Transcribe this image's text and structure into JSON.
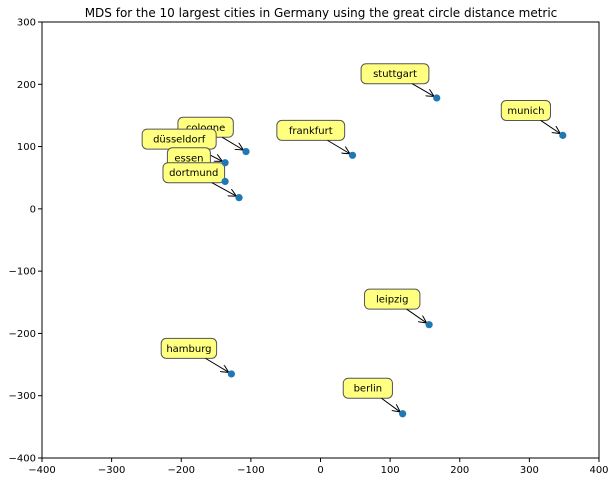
{
  "chart_data": {
    "type": "scatter",
    "title": "MDS for the 10 largest cities in Germany using the great circle distance metric",
    "xlim": [
      -400,
      400
    ],
    "ylim": [
      -400,
      300
    ],
    "xticks": [
      -400,
      -300,
      -200,
      -100,
      0,
      100,
      200,
      300,
      400
    ],
    "yticks": [
      -400,
      -300,
      -200,
      -100,
      0,
      100,
      200,
      300
    ],
    "xlabel": "",
    "ylabel": "",
    "grid": false,
    "colors": {
      "point": "#1f77b4",
      "annotation_fill": "#ffff80",
      "annotation_edge": "#555555"
    },
    "points": [
      {
        "label": "stuttgart",
        "x": 167,
        "y": 178,
        "text_x": 107,
        "text_y": 217
      },
      {
        "label": "munich",
        "x": 348,
        "y": 118,
        "text_x": 295,
        "text_y": 158
      },
      {
        "label": "frankfurt",
        "x": 46,
        "y": 86,
        "text_x": -14,
        "text_y": 126
      },
      {
        "label": "cologne",
        "x": -107,
        "y": 92,
        "text_x": -165,
        "text_y": 131
      },
      {
        "label": "düsseldorf",
        "x": -137,
        "y": 74,
        "text_x": -203,
        "text_y": 112
      },
      {
        "label": "essen",
        "x": -137,
        "y": 44,
        "text_x": -189,
        "text_y": 82
      },
      {
        "label": "dortmund",
        "x": -117,
        "y": 18,
        "text_x": -182,
        "text_y": 58
      },
      {
        "label": "leipzig",
        "x": 156,
        "y": -186,
        "text_x": 103,
        "text_y": -145
      },
      {
        "label": "hamburg",
        "x": -128,
        "y": -265,
        "text_x": -189,
        "text_y": -224
      },
      {
        "label": "berlin",
        "x": 118,
        "y": -329,
        "text_x": 68,
        "text_y": -288
      }
    ]
  }
}
